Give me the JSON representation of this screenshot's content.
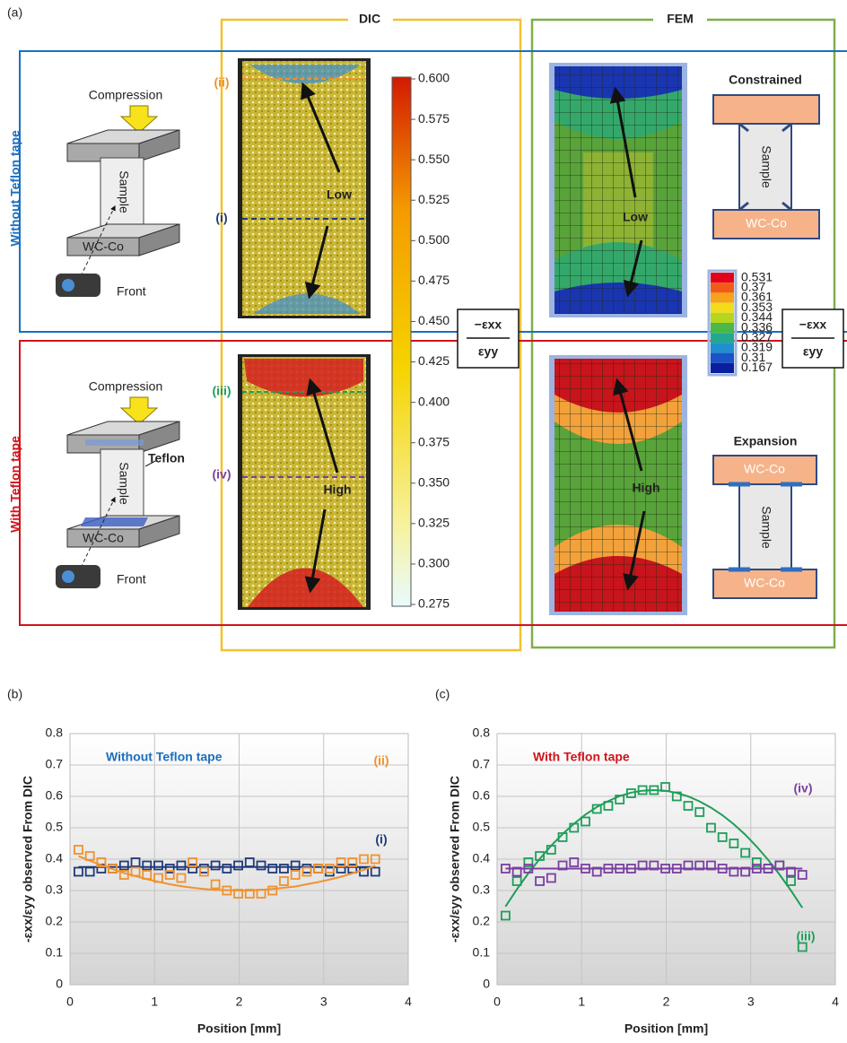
{
  "figure_a": {
    "label": "(a)",
    "dic": "DIC",
    "fem": "FEM",
    "rows": [
      {
        "label": "Without Teflon tape",
        "compression": "Compression",
        "sample": "Sample",
        "base": "WC-Co",
        "camera": "Front",
        "line_labels": [
          "(ii)",
          "(i)"
        ],
        "dic_arrow_text": "Low",
        "fem_arrow_text": "Low",
        "schematic": {
          "title": "Constrained",
          "sample": "Sample",
          "bottom": "WC-Co"
        }
      },
      {
        "label": "With Teflon tape",
        "compression": "Compression",
        "sample": "Sample",
        "base": "WC-Co",
        "camera": "Front",
        "teflon": "Teflon",
        "line_labels": [
          "(iii)",
          "(iv)"
        ],
        "dic_arrow_text": "High",
        "fem_arrow_text": "High",
        "schematic": {
          "title": "Expansion",
          "top": "WC-Co",
          "sample": "Sample",
          "bottom": "WC-Co"
        }
      }
    ],
    "ratio": {
      "numerator": "−εxx",
      "denominator": "εyy"
    },
    "dic_colorbar": [
      "0.600",
      "0.575",
      "0.550",
      "0.525",
      "0.500",
      "0.475",
      "0.450",
      "0.425",
      "0.400",
      "0.375",
      "0.350",
      "0.325",
      "0.300",
      "0.275"
    ],
    "fem_legend": {
      "labels": [
        "0.531",
        "0.37",
        "0.361",
        "0.353",
        "0.344",
        "0.336",
        "0.327",
        "0.319",
        "0.31",
        "0.167"
      ],
      "colors": [
        "#e3001b",
        "#f25a1a",
        "#f7a21b",
        "#f2dc1c",
        "#b6d51d",
        "#4cb847",
        "#23a88f",
        "#1f8fd0",
        "#1a52c8",
        "#0a1fa0"
      ]
    }
  },
  "chart_data": [
    {
      "type": "scatter",
      "panel_label": "(b)",
      "annotation": "Without Teflon tape",
      "annotation_color": "#1a6fc0",
      "x_label": "Position [mm]",
      "y_label": "-εxx/εyy observed From DIC",
      "xlim": [
        0,
        4
      ],
      "xticks": [
        0,
        1,
        2,
        3,
        4
      ],
      "ylim": [
        0,
        0.8
      ],
      "yticks": [
        0,
        0.1,
        0.2,
        0.3,
        0.4,
        0.5,
        0.6,
        0.7,
        0.8
      ],
      "grid": true,
      "x": [
        0.1,
        0.235,
        0.37,
        0.505,
        0.64,
        0.775,
        0.91,
        1.045,
        1.18,
        1.315,
        1.45,
        1.585,
        1.72,
        1.855,
        1.99,
        2.125,
        2.26,
        2.395,
        2.53,
        2.665,
        2.8,
        2.935,
        3.07,
        3.205,
        3.34,
        3.475,
        3.61
      ],
      "series": [
        {
          "name": "(i)",
          "color": "#1f3a7a",
          "values": [
            0.36,
            0.36,
            0.37,
            0.37,
            0.38,
            0.39,
            0.38,
            0.38,
            0.37,
            0.38,
            0.37,
            0.37,
            0.38,
            0.37,
            0.38,
            0.39,
            0.38,
            0.37,
            0.37,
            0.38,
            0.37,
            0.37,
            0.36,
            0.37,
            0.37,
            0.36,
            0.36
          ],
          "trend": [
            0.375,
            0.375,
            0.375,
            0.375,
            0.375,
            0.375,
            0.375,
            0.375,
            0.375,
            0.375,
            0.375,
            0.375,
            0.375,
            0.375,
            0.375,
            0.375,
            0.375,
            0.375,
            0.375,
            0.375,
            0.375,
            0.375,
            0.375,
            0.375,
            0.375,
            0.375,
            0.375
          ]
        },
        {
          "name": "(ii)",
          "color": "#f0922e",
          "values": [
            0.43,
            0.41,
            0.39,
            0.37,
            0.35,
            0.36,
            0.35,
            0.34,
            0.35,
            0.34,
            0.39,
            0.36,
            0.32,
            0.3,
            0.29,
            0.29,
            0.29,
            0.3,
            0.33,
            0.35,
            0.36,
            0.37,
            0.37,
            0.39,
            0.39,
            0.4,
            0.4
          ],
          "trend": [
            0.41,
            0.395,
            0.381,
            0.368,
            0.356,
            0.346,
            0.336,
            0.328,
            0.32,
            0.314,
            0.309,
            0.305,
            0.302,
            0.301,
            0.3,
            0.3,
            0.302,
            0.305,
            0.309,
            0.313,
            0.32,
            0.327,
            0.335,
            0.344,
            0.355,
            0.366,
            0.379
          ]
        }
      ]
    },
    {
      "type": "scatter",
      "panel_label": "(c)",
      "annotation": "With Teflon tape",
      "annotation_color": "#d0141c",
      "x_label": "Position [mm]",
      "y_label": "-εxx/εyy observed From DIC",
      "xlim": [
        0,
        4
      ],
      "xticks": [
        0,
        1,
        2,
        3,
        4
      ],
      "ylim": [
        0,
        0.8
      ],
      "yticks": [
        0,
        0.1,
        0.2,
        0.3,
        0.4,
        0.5,
        0.6,
        0.7,
        0.8
      ],
      "grid": true,
      "x": [
        0.1,
        0.235,
        0.37,
        0.505,
        0.64,
        0.775,
        0.91,
        1.045,
        1.18,
        1.315,
        1.45,
        1.585,
        1.72,
        1.855,
        1.99,
        2.125,
        2.26,
        2.395,
        2.53,
        2.665,
        2.8,
        2.935,
        3.07,
        3.205,
        3.34,
        3.475,
        3.61
      ],
      "series": [
        {
          "name": "(iii)",
          "color": "#1e9e5a",
          "values": [
            0.22,
            0.33,
            0.39,
            0.41,
            0.43,
            0.47,
            0.5,
            0.52,
            0.56,
            0.57,
            0.59,
            0.61,
            0.62,
            0.62,
            0.63,
            0.6,
            0.57,
            0.55,
            0.5,
            0.47,
            0.45,
            0.42,
            0.39,
            0.37,
            0.38,
            0.33,
            0.12
          ],
          "trend": [
            0.249,
            0.304,
            0.355,
            0.401,
            0.443,
            0.48,
            0.513,
            0.542,
            0.566,
            0.585,
            0.601,
            0.612,
            0.618,
            0.62,
            0.618,
            0.611,
            0.6,
            0.584,
            0.564,
            0.54,
            0.511,
            0.478,
            0.44,
            0.398,
            0.351,
            0.3,
            0.245
          ]
        },
        {
          "name": "(iv)",
          "color": "#7a3fa0",
          "values": [
            0.37,
            0.36,
            0.37,
            0.33,
            0.34,
            0.38,
            0.39,
            0.37,
            0.36,
            0.37,
            0.37,
            0.37,
            0.38,
            0.38,
            0.37,
            0.37,
            0.38,
            0.38,
            0.38,
            0.37,
            0.36,
            0.36,
            0.37,
            0.37,
            0.38,
            0.36,
            0.35
          ],
          "trend": [
            0.37,
            0.37,
            0.37,
            0.37,
            0.37,
            0.37,
            0.37,
            0.37,
            0.37,
            0.37,
            0.37,
            0.37,
            0.37,
            0.37,
            0.37,
            0.37,
            0.37,
            0.37,
            0.37,
            0.37,
            0.37,
            0.37,
            0.37,
            0.37,
            0.37,
            0.37,
            0.37
          ]
        }
      ]
    }
  ]
}
